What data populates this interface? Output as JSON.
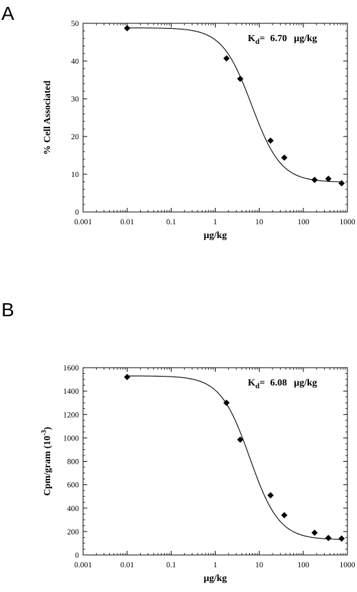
{
  "chart_data": [
    {
      "panel_label": "A",
      "type": "scatter",
      "xscale": "log",
      "xlim": [
        0.001,
        1000
      ],
      "ylim": [
        0,
        50
      ],
      "xticks": [
        "0.001",
        "0.01",
        "0.1",
        "1",
        "10",
        "100",
        "1000"
      ],
      "yticks": [
        "0",
        "10",
        "20",
        "30",
        "40",
        "50"
      ],
      "xlabel": "µg/kg",
      "ylabel": "% Cell Associated",
      "annotation": {
        "sym": "K",
        "sub": "d",
        "eq": "=",
        "value": "6.70",
        "unit": "µg/kg"
      },
      "points": [
        {
          "x": 0.01,
          "y": 48.7
        },
        {
          "x": 1.8,
          "y": 40.7
        },
        {
          "x": 3.7,
          "y": 35.3
        },
        {
          "x": 18,
          "y": 18.9
        },
        {
          "x": 37,
          "y": 14.4
        },
        {
          "x": 180,
          "y": 8.5
        },
        {
          "x": 370,
          "y": 8.8
        },
        {
          "x": 740,
          "y": 7.6
        }
      ],
      "fit": {
        "top": 48.8,
        "bottom": 7.9,
        "kd": 6.7,
        "hill": 1.3
      }
    },
    {
      "panel_label": "B",
      "type": "scatter",
      "xscale": "log",
      "xlim": [
        0.001,
        1000
      ],
      "ylim": [
        0,
        1600
      ],
      "xticks": [
        "0.001",
        "0.01",
        "0.1",
        "1",
        "10",
        "100",
        "1000"
      ],
      "yticks": [
        "0",
        "200",
        "400",
        "600",
        "800",
        "1000",
        "1200",
        "1400",
        "1600"
      ],
      "xlabel": "µg/kg",
      "ylabel": "Cpm/gram (10",
      "ylabel_sup": "-3",
      "ylabel_end": ")",
      "annotation": {
        "sym": "K",
        "sub": "d",
        "eq": "=",
        "value": "6.08",
        "unit": "µg/kg"
      },
      "points": [
        {
          "x": 0.01,
          "y": 1520
        },
        {
          "x": 1.8,
          "y": 1300
        },
        {
          "x": 3.7,
          "y": 985
        },
        {
          "x": 18,
          "y": 510
        },
        {
          "x": 37,
          "y": 340
        },
        {
          "x": 180,
          "y": 190
        },
        {
          "x": 370,
          "y": 145
        },
        {
          "x": 740,
          "y": 140
        }
      ],
      "fit": {
        "top": 1530,
        "bottom": 130,
        "kd": 6.08,
        "hill": 1.3
      }
    }
  ]
}
